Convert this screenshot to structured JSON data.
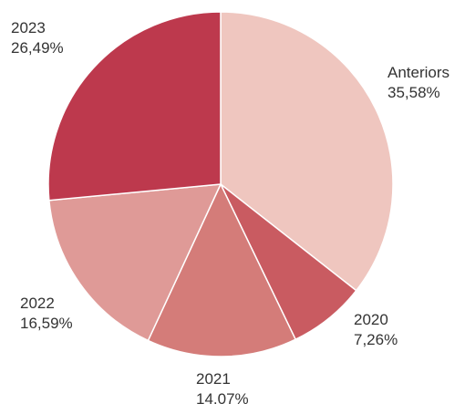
{
  "chart_data": {
    "type": "pie",
    "categories": [
      "Anteriors",
      "2020",
      "2021",
      "2022",
      "2023"
    ],
    "values": [
      35.58,
      7.26,
      14.07,
      16.59,
      26.49
    ],
    "value_labels": [
      "35,58%",
      "7,26%",
      "14.07%",
      "16,59%",
      "26,49%"
    ],
    "colors": [
      "#efc6bf",
      "#c95b61",
      "#d47c79",
      "#df9a97",
      "#bd394d"
    ]
  }
}
